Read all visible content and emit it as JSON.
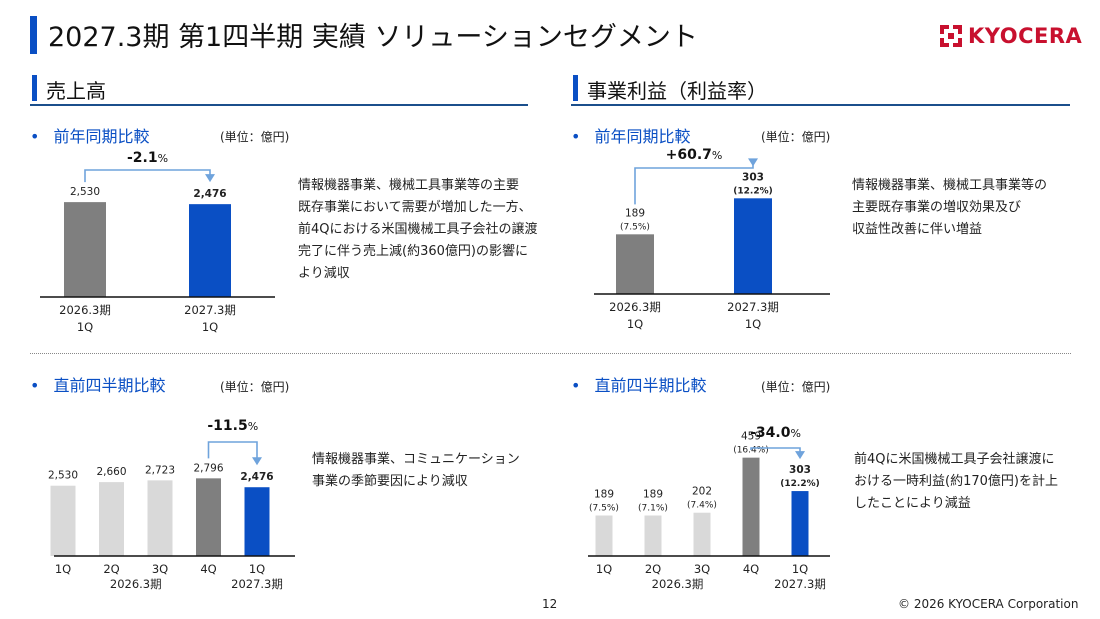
{
  "page": {
    "title": "2027.3期 第1四半期 実績 ソリューションセグメント",
    "logo_text": "KYOCERA",
    "page_number": "12",
    "copyright": "© 2026 KYOCERA Corporation"
  },
  "sections": {
    "sales": {
      "title": "売上高"
    },
    "profit": {
      "title": "事業利益（利益率）"
    }
  },
  "panels": {
    "sales_yoy": {
      "subtitle": "前年同期比較",
      "unit": "(単位：億円)",
      "note": [
        "情報機器事業、機械工具事業等の主要",
        "既存事業において需要が増加した一方、",
        "前4Qにおける米国機械工具子会社の譲渡",
        "完了に伴う売上減(約360億円)の影響に",
        "より減収"
      ]
    },
    "profit_yoy": {
      "subtitle": "前年同期比較",
      "unit": "(単位：億円)",
      "note": [
        "情報機器事業、機械工具事業等の",
        "主要既存事業の増収効果及び",
        "収益性改善に伴い増益"
      ]
    },
    "sales_qoq": {
      "subtitle": "直前四半期比較",
      "unit": "(単位：億円)",
      "note": [
        "情報機器事業、コミュニケーション",
        "事業の季節要因により減収"
      ]
    },
    "profit_qoq": {
      "subtitle": "直前四半期比較",
      "unit": "(単位：億円)",
      "note": [
        "前4Qに米国機械工具子会社譲渡に",
        "おける一時利益(約170億円)を計上",
        "したことにより減益"
      ]
    }
  },
  "colors": {
    "accent": "#0a4fc4",
    "gray": "#7f7f7f",
    "light_gray": "#d9d9d9",
    "brand_red": "#c8102e"
  },
  "chart_data": [
    {
      "id": "sales_yoy",
      "type": "bar",
      "categories": [
        "2026.3期\n1Q",
        "2027.3期\n1Q"
      ],
      "values": [
        2530,
        2476
      ],
      "value_labels": [
        "2,530",
        "2,476"
      ],
      "sub_labels": [
        "",
        ""
      ],
      "change": "-2.1",
      "change_unit": "%",
      "ylim": [
        0,
        3200
      ],
      "colors": [
        "#7f7f7f",
        "#0a4fc4"
      ],
      "bold": [
        false,
        true
      ]
    },
    {
      "id": "profit_yoy",
      "type": "bar",
      "categories": [
        "2026.3期\n1Q",
        "2027.3期\n1Q"
      ],
      "values": [
        189,
        303
      ],
      "value_labels": [
        "189",
        "303"
      ],
      "sub_labels": [
        "(7.5%)",
        "(12.2%)"
      ],
      "change": "+60.7",
      "change_unit": "%",
      "ylim": [
        0,
        380
      ],
      "colors": [
        "#7f7f7f",
        "#0a4fc4"
      ],
      "bold": [
        false,
        true
      ]
    },
    {
      "id": "sales_qoq",
      "type": "bar",
      "categories": [
        "1Q",
        "2Q",
        "3Q",
        "4Q",
        "1Q"
      ],
      "group_labels": [
        "2026.3期",
        "2027.3期"
      ],
      "values": [
        2530,
        2660,
        2723,
        2796,
        2476
      ],
      "value_labels": [
        "2,530",
        "2,660",
        "2,723",
        "2,796",
        "2,476"
      ],
      "sub_labels": [
        "",
        "",
        "",
        "",
        ""
      ],
      "change": "-11.5",
      "change_unit": "%",
      "ylim": [
        0,
        4500
      ],
      "colors": [
        "#d9d9d9",
        "#d9d9d9",
        "#d9d9d9",
        "#7f7f7f",
        "#0a4fc4"
      ],
      "bold": [
        false,
        false,
        false,
        false,
        true
      ]
    },
    {
      "id": "profit_qoq",
      "type": "bar",
      "categories": [
        "1Q",
        "2Q",
        "3Q",
        "4Q",
        "1Q"
      ],
      "group_labels": [
        "2026.3期",
        "2027.3期"
      ],
      "values": [
        189,
        189,
        202,
        459,
        303
      ],
      "value_labels": [
        "189",
        "189",
        "202",
        "459",
        "303"
      ],
      "sub_labels": [
        "(7.5%)",
        "(7.1%)",
        "(7.4%)",
        "(16.4%)",
        "(12.2%)"
      ],
      "change": "-34.0",
      "change_unit": "%",
      "ylim": [
        0,
        700
      ],
      "colors": [
        "#d9d9d9",
        "#d9d9d9",
        "#d9d9d9",
        "#7f7f7f",
        "#0a4fc4"
      ],
      "bold": [
        false,
        false,
        false,
        false,
        true
      ]
    }
  ]
}
